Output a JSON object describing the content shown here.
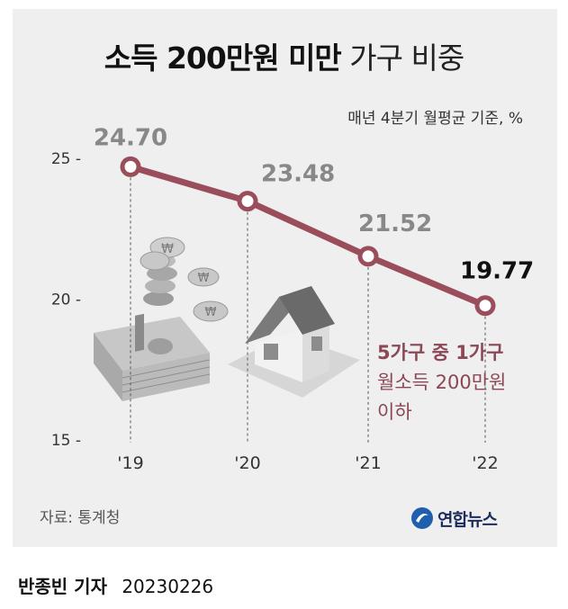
{
  "header": {
    "title_bold": "소득 200만원 미만",
    "title_light": "가구 비중",
    "subtitle": "매년 4분기 월평균 기준, %"
  },
  "chart_data": {
    "type": "line",
    "categories": [
      "'19",
      "'20",
      "'21",
      "'22"
    ],
    "values": [
      24.7,
      23.48,
      21.52,
      19.77
    ],
    "value_labels": [
      "24.70",
      "23.48",
      "21.52",
      "19.77"
    ],
    "yticks": [
      15,
      20,
      25
    ],
    "ytick_labels": [
      "15 -",
      "20 -",
      "25 -"
    ],
    "ylim": [
      15,
      25
    ],
    "grid": false,
    "colors": {
      "line": "#9a4e5c",
      "label": "#888888",
      "last_label": "#111111"
    }
  },
  "annotation": {
    "line1": "5가구 중 1가구",
    "line2": "월소득 200만원",
    "line3": "이하"
  },
  "footer": {
    "source": "자료: 통계청",
    "logo_text": "연합뉴스",
    "reporter": "반종빈 기자",
    "date": "20230226"
  }
}
